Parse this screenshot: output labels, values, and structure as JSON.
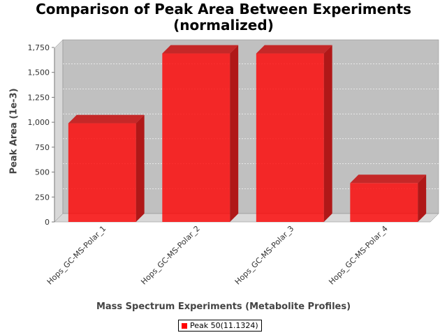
{
  "chart_data": {
    "type": "bar",
    "title": [
      "Comparison of Peak Area Between Experiments",
      "(normalized)"
    ],
    "xlabel": "Mass Spectrum Experiments (Metabolite Profiles)",
    "ylabel": "Peak Area (1e-3)",
    "categories": [
      "Hops_GC-MS-Polar_1",
      "Hops_GC-MS-Polar_2",
      "Hops_GC-MS-Polar_3",
      "Hops_GC-MS-Polar_4"
    ],
    "series": [
      {
        "name": "Peak 50(11.1324)",
        "values": [
          990,
          1690,
          1690,
          390
        ]
      }
    ],
    "ylim": [
      0,
      1750
    ],
    "yticks": [
      0,
      250,
      500,
      750,
      1000,
      1250,
      1500,
      1750
    ],
    "ytick_labels": [
      "0",
      "250",
      "500",
      "750",
      "1,000",
      "1,250",
      "1,500",
      "1,750"
    ],
    "grid": true,
    "legend_position": "bottom-center",
    "colors": {
      "bar": "#ff0000",
      "plot_background": "#c0c0c0",
      "wall": "#d8d8d8"
    }
  }
}
